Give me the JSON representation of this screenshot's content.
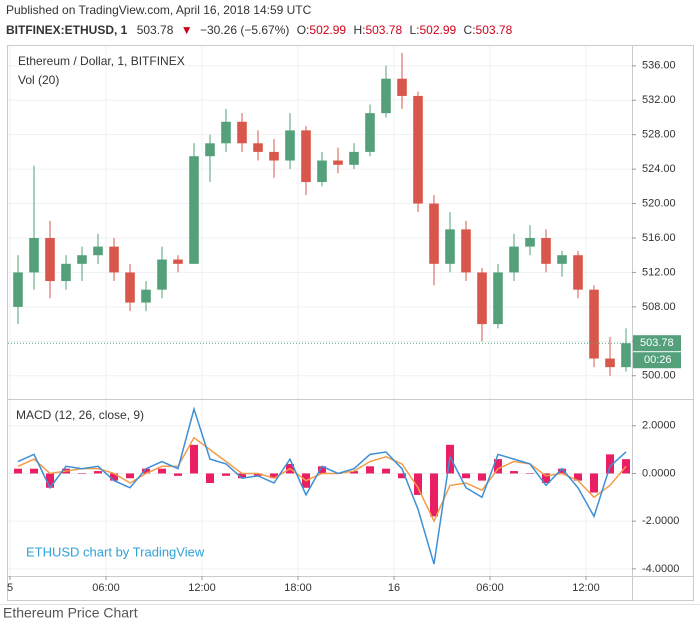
{
  "header": {
    "published": "Published on TradingView.com, April 16, 2018 14:59 UTC",
    "symbol": "BITFINEX:ETHUSD, 1",
    "price": "503.78",
    "change": "−30.26 (−5.67%)",
    "ohlc": [
      {
        "label": "O:",
        "value": "502.99"
      },
      {
        "label": "H:",
        "value": "503.78"
      },
      {
        "label": "L:",
        "value": "502.99"
      },
      {
        "label": "C:",
        "value": "503.78"
      }
    ]
  },
  "watermark": "ETHUSD chart by TradingView",
  "footer": "Ethereum Price Chart",
  "chart_data": [
    {
      "type": "candlestick",
      "title": "Ethereum / Dollar, 1, BITFINEX",
      "indicator": "Vol (20)",
      "up_color": "#53a07a",
      "down_color": "#d9574a",
      "x": [
        0.5,
        1.5,
        2.5,
        3.5,
        4.5,
        5.5,
        6.5,
        7.5,
        8.5,
        9.5,
        10.5,
        11.5,
        12.5,
        13.5,
        14.5,
        15.5,
        16.5,
        17.5,
        18.5,
        19.5,
        20.5,
        21.5,
        22.5,
        23.5,
        24.5,
        25.5,
        26.5,
        27.5,
        28.5,
        29.5,
        30.5,
        31.5,
        32.5,
        33.5,
        34.5,
        35.5,
        36.5,
        37.5,
        38.5
      ],
      "open": [
        508,
        512,
        516,
        511,
        513,
        514,
        515,
        512,
        508.5,
        510,
        513.5,
        513,
        525.5,
        527,
        529.5,
        527,
        526,
        525,
        528.5,
        522.5,
        525,
        524.5,
        526,
        530.5,
        534.5,
        532.5,
        520,
        513,
        517,
        512,
        506,
        512,
        515,
        516,
        513,
        514,
        510,
        502,
        501
      ],
      "high": [
        514,
        524.4,
        518,
        514,
        515,
        516.5,
        516,
        513,
        511,
        515,
        514,
        527,
        528,
        531,
        530.5,
        528.5,
        527.5,
        530.5,
        529,
        526,
        526.5,
        527,
        531.5,
        536,
        537.5,
        533,
        521,
        519,
        518,
        512.5,
        513,
        516.5,
        517.5,
        517,
        514.5,
        514.5,
        510.5,
        504.5,
        505.5
      ],
      "low": [
        506,
        510,
        509,
        510,
        511,
        513,
        511,
        507.5,
        507.5,
        509,
        512,
        513,
        522.5,
        526,
        526,
        525,
        523,
        524,
        521,
        522,
        523.5,
        524,
        525.5,
        530,
        531,
        519,
        510.5,
        512,
        511,
        504,
        505.5,
        511,
        514,
        512,
        511.5,
        509,
        501,
        500,
        500.5
      ],
      "close": [
        512,
        516,
        511,
        513,
        514,
        515,
        512,
        508.5,
        510,
        513.5,
        513,
        525.5,
        527,
        529.5,
        527,
        526,
        525,
        528.5,
        522.5,
        525,
        524.5,
        526,
        530.5,
        534.5,
        532.5,
        520,
        513,
        517,
        512,
        506,
        512,
        515,
        516,
        513,
        514,
        510,
        502,
        501,
        503.78
      ],
      "xlim": [
        -0.125,
        38.875
      ],
      "ylim": [
        497.3,
        538.3
      ],
      "yticks": [
        {
          "value": 500,
          "label": "500.00"
        },
        {
          "value": 504,
          "label": "504.00"
        },
        {
          "value": 508,
          "label": "508.00"
        },
        {
          "value": 512,
          "label": "512.00"
        },
        {
          "value": 516,
          "label": "516.00"
        },
        {
          "value": 520,
          "label": "520.00"
        },
        {
          "value": 524,
          "label": "524.00"
        },
        {
          "value": 528,
          "label": "528.00"
        },
        {
          "value": 532,
          "label": "532.00"
        },
        {
          "value": 536,
          "label": "536.00"
        }
      ],
      "grid": true,
      "last_price": 503.78,
      "last_color": "#53a07a",
      "countdown": "00:26"
    },
    {
      "type": "line",
      "title": "MACD (12, 26, close, 9)",
      "x": [
        0.5,
        1.5,
        2.5,
        3.5,
        4.5,
        5.5,
        6.5,
        7.5,
        8.5,
        9.5,
        10.5,
        11.5,
        12.5,
        13.5,
        14.5,
        15.5,
        16.5,
        17.5,
        18.5,
        19.5,
        20.5,
        21.5,
        22.5,
        23.5,
        24.5,
        25.5,
        26.5,
        27.5,
        28.5,
        29.5,
        30.5,
        31.5,
        32.5,
        33.5,
        34.5,
        35.5,
        36.5,
        37.5,
        38.5
      ],
      "series": [
        {
          "type": "bar",
          "color": "#e91e63",
          "values": [
            0.2,
            0.2,
            -0.6,
            0.2,
            0.0,
            0.1,
            -0.3,
            -0.2,
            0.2,
            0.2,
            -0.1,
            1.2,
            -0.4,
            -0.1,
            -0.2,
            -0.1,
            -0.2,
            0.4,
            -0.6,
            0.3,
            0.0,
            0.1,
            0.3,
            0.2,
            -0.2,
            -0.9,
            -1.8,
            1.2,
            -0.2,
            -0.3,
            0.6,
            0.1,
            0.0,
            -0.4,
            0.2,
            -0.3,
            -0.8,
            0.8,
            0.6
          ]
        },
        {
          "type": "line",
          "color": "#f39c4a",
          "values": [
            0.3,
            0.6,
            0.0,
            0.1,
            0.2,
            0.2,
            0.0,
            -0.4,
            0.0,
            0.3,
            0.3,
            1.5,
            1.0,
            0.5,
            0.0,
            0.0,
            -0.2,
            0.2,
            -0.3,
            0.0,
            0.0,
            0.1,
            0.5,
            0.7,
            0.4,
            -0.6,
            -2.0,
            -0.5,
            -0.4,
            -0.7,
            0.2,
            0.5,
            0.4,
            -0.1,
            0.0,
            -0.3,
            -1.0,
            -0.5,
            0.3
          ]
        },
        {
          "type": "line",
          "color": "#3d8fd6",
          "values": [
            0.5,
            0.8,
            -0.6,
            0.3,
            0.2,
            0.3,
            -0.3,
            -0.6,
            0.2,
            0.5,
            0.2,
            2.7,
            0.6,
            0.4,
            -0.2,
            -0.1,
            -0.4,
            0.6,
            -0.9,
            0.3,
            0.0,
            0.2,
            0.8,
            0.9,
            0.2,
            -1.5,
            -3.8,
            0.7,
            -0.6,
            -1.0,
            0.8,
            0.6,
            0.4,
            -0.5,
            0.2,
            -0.6,
            -1.8,
            0.3,
            0.9
          ]
        }
      ],
      "xlim": [
        -0.125,
        38.875
      ],
      "ylim": [
        -4.3,
        3.08
      ],
      "xticks": [
        {
          "value": 0,
          "label": "5"
        },
        {
          "value": 6,
          "label": "06:00"
        },
        {
          "value": 12,
          "label": "12:00"
        },
        {
          "value": 18,
          "label": "18:00"
        },
        {
          "value": 24,
          "label": "16"
        },
        {
          "value": 30,
          "label": "06:00"
        },
        {
          "value": 36,
          "label": "12:00"
        }
      ],
      "yticks": [
        {
          "value": 2,
          "label": "2.0000"
        },
        {
          "value": 0,
          "label": "0.0000"
        },
        {
          "value": -2,
          "label": "-2.0000"
        },
        {
          "value": -4,
          "label": "-4.0000"
        }
      ],
      "grid": true
    }
  ]
}
